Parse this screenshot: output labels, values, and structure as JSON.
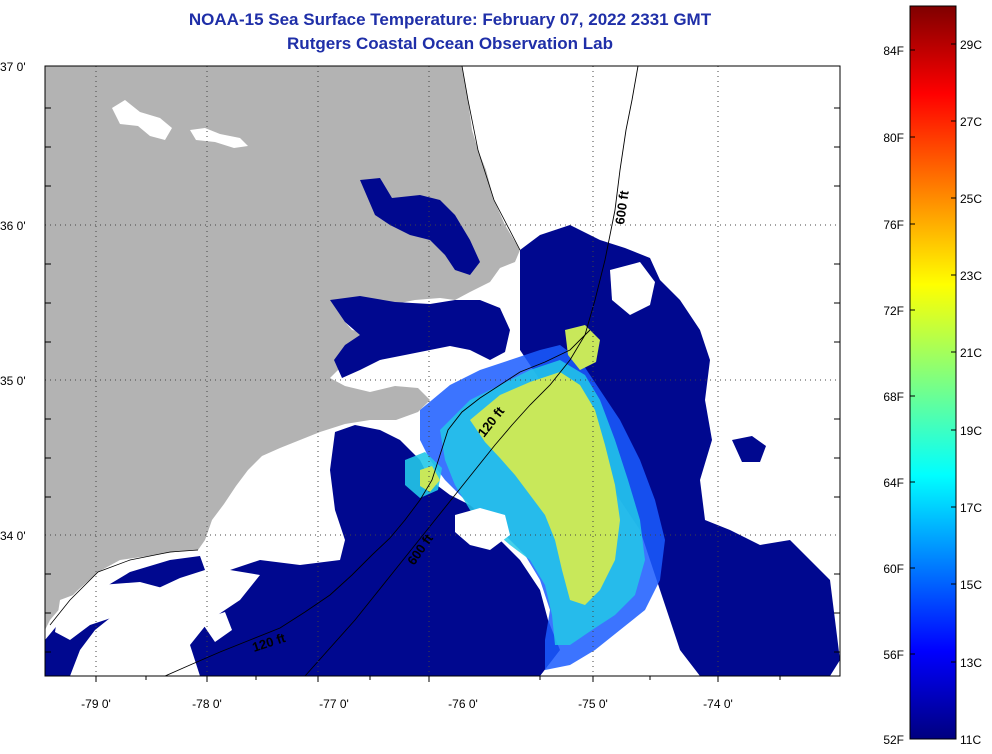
{
  "header": {
    "title": "NOAA-15 Sea Surface Temperature:  February 07, 2022 2331 GMT",
    "subtitle": "Rutgers Coastal Ocean Observation Lab"
  },
  "map": {
    "lat_range": [
      33.1,
      37.0
    ],
    "lon_range": [
      -79.3,
      -73.3
    ],
    "lat_ticks": [
      "37 0'",
      "36 0'",
      "35 0'",
      "34 0'"
    ],
    "lon_ticks": [
      "-79 0'",
      "-78 0'",
      "-77 0'",
      "-76 0'",
      "-75 0'",
      "-74 0'"
    ],
    "contour_labels": [
      "600 ft",
      "600 ft",
      "120 ft",
      "120 ft"
    ],
    "colors": {
      "land": "#b3b3b3",
      "no_data": "#ffffff",
      "cold_water": "#00088f",
      "warm_core": "#c8e85a"
    }
  },
  "colorbar": {
    "fahrenheit_labels": [
      "84F",
      "80F",
      "76F",
      "72F",
      "68F",
      "64F",
      "60F",
      "56F",
      "52F"
    ],
    "celsius_labels": [
      "29C",
      "27C",
      "25C",
      "23C",
      "21C",
      "19C",
      "17C",
      "15C",
      "13C",
      "11C"
    ],
    "range_c": [
      11,
      30
    ]
  }
}
